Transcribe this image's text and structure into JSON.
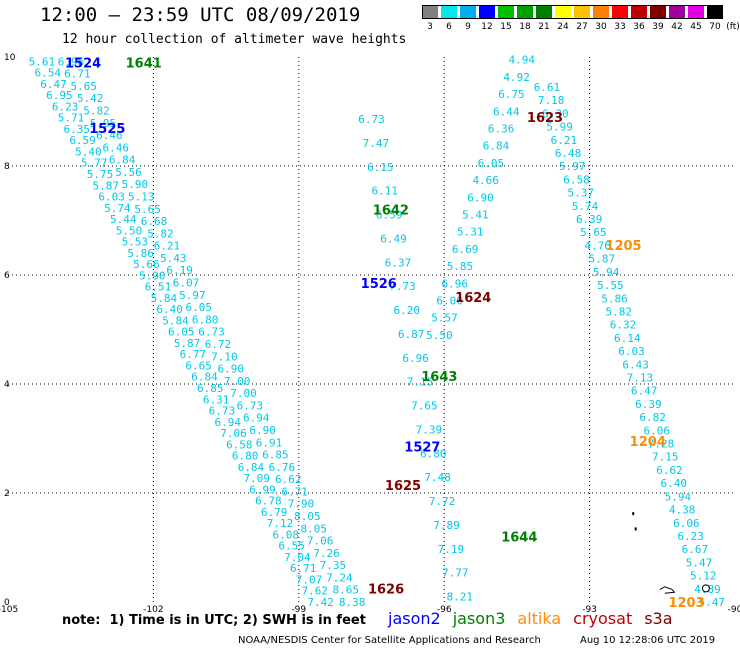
{
  "header": {
    "title": "12:00 – 23:59 UTC 08/09/2019",
    "subtitle": "12 hour collection of altimeter wave heights"
  },
  "colorbar": {
    "unit": "(ft)",
    "ticks": [
      "3",
      "6",
      "9",
      "12",
      "15",
      "18",
      "21",
      "24",
      "27",
      "30",
      "33",
      "36",
      "39",
      "42",
      "45",
      "70"
    ],
    "colors": [
      "#808080",
      "#00e8e8",
      "#00b0f0",
      "#0000ff",
      "#00c000",
      "#00a000",
      "#008000",
      "#ffff00",
      "#ffc000",
      "#ff8000",
      "#ff0000",
      "#c00000",
      "#800000",
      "#a000a0",
      "#e000e0",
      "#000000"
    ]
  },
  "footer": {
    "note": "note:  1) Time is in UTC; 2) SWH is in feet",
    "credit": "NOAA/NESDIS Center for Satellite Applications and Research",
    "stamp": "Aug 10 12:28:06 UTC 2019"
  },
  "legend": [
    {
      "name": "jason2",
      "color": "#0000ff"
    },
    {
      "name": "jason3",
      "color": "#008000"
    },
    {
      "name": "altika",
      "color": "#ff8c00"
    },
    {
      "name": "cryosat",
      "color": "#c00000"
    },
    {
      "name": "s3a",
      "color": "#800000"
    }
  ],
  "chart_data": {
    "type": "scatter",
    "xlim": [
      -105,
      -90
    ],
    "ylim": [
      0,
      10
    ],
    "x_ticks": [
      -105,
      -102,
      -99,
      -96,
      -93,
      -90
    ],
    "y_ticks": [
      0,
      2,
      4,
      6,
      8,
      10
    ],
    "grid": true,
    "value_color": "#00c8e8",
    "tracks": [
      {
        "name": "track-a",
        "start": [
          -104.3,
          9.92
        ],
        "end": [
          -98.55,
          0.0
        ],
        "values": [
          5.61,
          6.54,
          6.47,
          6.95,
          6.23,
          5.71,
          6.35,
          6.59,
          5.4,
          5.77,
          5.75,
          5.87,
          6.03,
          5.74,
          5.44,
          5.5,
          5.53,
          5.86,
          5.66,
          5.9,
          6.51,
          5.84,
          6.4,
          5.84,
          6.05,
          5.87,
          6.77,
          6.65,
          6.84,
          6.85,
          6.31,
          6.73,
          6.94,
          7.06,
          6.58,
          6.8,
          6.84,
          7.09,
          6.99,
          6.78,
          6.79,
          7.12,
          6.08,
          6.55,
          7.04,
          6.71,
          7.07,
          7.62,
          7.42
        ]
      },
      {
        "name": "track-b",
        "start": [
          -103.7,
          9.92
        ],
        "end": [
          -97.9,
          0.0
        ],
        "values": [
          6.96,
          6.71,
          5.65,
          5.42,
          5.82,
          5.95,
          6.46,
          6.46,
          6.84,
          5.56,
          5.9,
          5.13,
          5.65,
          6.68,
          5.82,
          6.21,
          5.43,
          6.19,
          6.07,
          5.97,
          6.05,
          6.8,
          6.73,
          6.72,
          7.1,
          6.9,
          7.0,
          7.0,
          6.73,
          6.94,
          6.9,
          6.91,
          6.85,
          6.76,
          6.62,
          6.71,
          7.9,
          8.05,
          8.05,
          7.06,
          7.26,
          7.35,
          7.24,
          8.65,
          8.38
        ]
      },
      {
        "name": "track-c",
        "start": [
          -97.5,
          8.86
        ],
        "end": [
          -95.68,
          0.1
        ],
        "values": [
          6.73,
          7.47,
          6.15,
          6.11,
          6.59,
          6.49,
          6.37,
          7.73,
          6.2,
          6.87,
          6.96,
          7.15,
          7.65,
          7.39,
          6.8,
          7.48,
          7.72,
          7.89,
          7.19,
          7.77,
          8.21
        ]
      },
      {
        "name": "track-d",
        "start": [
          -94.4,
          9.95
        ],
        "end": [
          -96.1,
          4.9
        ],
        "values": [
          4.94,
          4.92,
          6.75,
          6.44,
          6.36,
          6.84,
          6.05,
          4.66,
          6.9,
          5.41,
          5.31,
          6.69,
          5.85,
          6.96,
          6.0,
          5.57,
          5.5
        ]
      },
      {
        "name": "track-e",
        "start": [
          -93.88,
          9.45
        ],
        "end": [
          -90.48,
          0.0
        ],
        "values": [
          6.61,
          7.18,
          6.3,
          5.99,
          6.21,
          6.48,
          5.97,
          6.58,
          5.37,
          5.74,
          6.39,
          5.65,
          4.76,
          5.87,
          5.94,
          5.55,
          5.86,
          5.82,
          6.32,
          6.14,
          6.03,
          6.43,
          7.13,
          6.47,
          6.39,
          6.82,
          6.06,
          7.28,
          7.15,
          6.62,
          6.4,
          5.94,
          4.38,
          6.06,
          6.23,
          6.67,
          5.47,
          5.12,
          4.89,
          5.47
        ]
      }
    ],
    "pass_labels": [
      {
        "text": "1524",
        "x": -103.45,
        "y": 9.9,
        "sat": "jason2"
      },
      {
        "text": "1641",
        "x": -102.2,
        "y": 9.9,
        "sat": "jason3"
      },
      {
        "text": "1525",
        "x": -102.95,
        "y": 8.7,
        "sat": "jason2"
      },
      {
        "text": "1623",
        "x": -93.92,
        "y": 8.9,
        "sat": "s3a"
      },
      {
        "text": "1642",
        "x": -97.1,
        "y": 7.2,
        "sat": "jason3"
      },
      {
        "text": "1205",
        "x": -92.3,
        "y": 6.55,
        "sat": "altika"
      },
      {
        "text": "1526",
        "x": -97.35,
        "y": 5.85,
        "sat": "jason2"
      },
      {
        "text": "1624",
        "x": -95.4,
        "y": 5.6,
        "sat": "s3a"
      },
      {
        "text": "1643",
        "x": -96.1,
        "y": 4.15,
        "sat": "jason3"
      },
      {
        "text": "1204",
        "x": -91.8,
        "y": 2.95,
        "sat": "altika"
      },
      {
        "text": "1527",
        "x": -96.45,
        "y": 2.85,
        "sat": "jason2"
      },
      {
        "text": "1625",
        "x": -96.85,
        "y": 2.15,
        "sat": "s3a"
      },
      {
        "text": "1644",
        "x": -94.45,
        "y": 1.2,
        "sat": "jason3"
      },
      {
        "text": "1626",
        "x": -97.2,
        "y": 0.25,
        "sat": "s3a"
      },
      {
        "text": "1203",
        "x": -91.0,
        "y": 0.0,
        "sat": "altika"
      }
    ],
    "land": [
      {
        "type": "dot",
        "x": -92.1,
        "y": 1.63
      },
      {
        "type": "dot",
        "x": -92.05,
        "y": 1.35
      },
      {
        "type": "poly",
        "points": [
          [
            -91.55,
            0.23
          ],
          [
            -91.45,
            0.28
          ],
          [
            -91.3,
            0.23
          ],
          [
            -91.25,
            0.18
          ],
          [
            -91.45,
            0.16
          ]
        ]
      },
      {
        "type": "ring",
        "x": -90.6,
        "y": 0.25
      }
    ]
  }
}
